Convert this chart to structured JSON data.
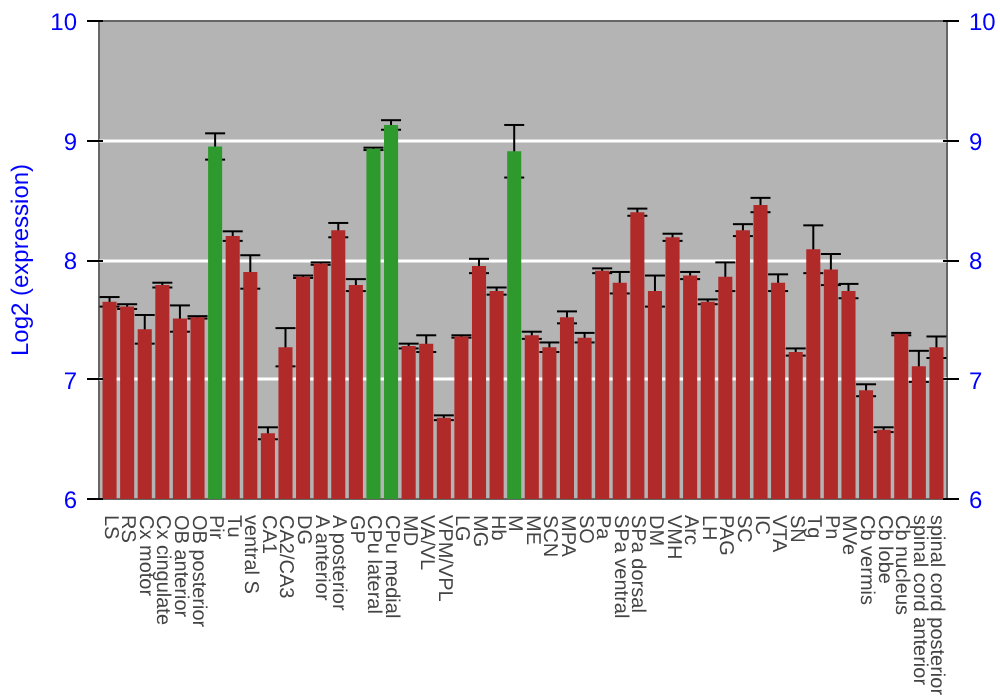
{
  "chart_data": {
    "type": "bar",
    "ylabel": "Log2 (expression)",
    "categories": [
      "LS",
      "RS",
      "Cx motor",
      "Cx cingulate",
      "OB anterior",
      "OB posterior",
      "Pir",
      "Tu",
      "ventral S",
      "CA1",
      "CA2/CA3",
      "DG",
      "A anterior",
      "A posterior",
      "GP",
      "CPu lateral",
      "CPu medial",
      "MD",
      "VA/VL",
      "VPM/VPL",
      "LG",
      "MG",
      "Hb",
      "M",
      "ME",
      "SCN",
      "MPA",
      "SO",
      "Pa",
      "SPa ventral",
      "SPa dorsal",
      "DM",
      "VMH",
      "Arc",
      "LH",
      "PAG",
      "SC",
      "IC",
      "VTA",
      "SN",
      "Tg",
      "Pn",
      "MVe",
      "Cb vermis",
      "Cb lobe",
      "Cb nucleus",
      "spinal cord anterior",
      "spinal cord posterior"
    ],
    "values": [
      7.65,
      7.61,
      7.42,
      7.79,
      7.51,
      7.52,
      8.95,
      8.2,
      7.9,
      6.55,
      7.27,
      7.86,
      7.97,
      8.25,
      7.79,
      8.93,
      9.13,
      7.28,
      7.3,
      6.68,
      7.36,
      7.95,
      7.74,
      8.91,
      7.37,
      7.27,
      7.52,
      7.35,
      7.91,
      7.81,
      8.4,
      7.74,
      8.19,
      7.87,
      7.65,
      7.86,
      8.25,
      8.46,
      7.81,
      7.23,
      8.09,
      7.92,
      7.74,
      6.91,
      6.58,
      7.38,
      7.11,
      7.27
    ],
    "errors": [
      0.04,
      0.02,
      0.12,
      0.02,
      0.11,
      0.01,
      0.11,
      0.04,
      0.14,
      0.05,
      0.16,
      0.01,
      0.01,
      0.06,
      0.05,
      0.01,
      0.04,
      0.02,
      0.07,
      0.02,
      0.01,
      0.06,
      0.03,
      0.22,
      0.03,
      0.04,
      0.05,
      0.04,
      0.02,
      0.09,
      0.03,
      0.13,
      0.03,
      0.03,
      0.02,
      0.12,
      0.05,
      0.06,
      0.07,
      0.03,
      0.2,
      0.13,
      0.06,
      0.05,
      0.02,
      0.01,
      0.13,
      0.09
    ],
    "colors": [
      "#b02a2a",
      "#b02a2a",
      "#b02a2a",
      "#b02a2a",
      "#b02a2a",
      "#b02a2a",
      "#2e9a2e",
      "#b02a2a",
      "#b02a2a",
      "#b02a2a",
      "#b02a2a",
      "#b02a2a",
      "#b02a2a",
      "#b02a2a",
      "#b02a2a",
      "#2e9a2e",
      "#2e9a2e",
      "#b02a2a",
      "#b02a2a",
      "#b02a2a",
      "#b02a2a",
      "#b02a2a",
      "#b02a2a",
      "#2e9a2e",
      "#b02a2a",
      "#b02a2a",
      "#b02a2a",
      "#b02a2a",
      "#b02a2a",
      "#b02a2a",
      "#b02a2a",
      "#b02a2a",
      "#b02a2a",
      "#b02a2a",
      "#b02a2a",
      "#b02a2a",
      "#b02a2a",
      "#b02a2a",
      "#b02a2a",
      "#b02a2a",
      "#b02a2a",
      "#b02a2a",
      "#b02a2a",
      "#b02a2a",
      "#b02a2a",
      "#b02a2a",
      "#b02a2a",
      "#b02a2a"
    ],
    "ylim": [
      6,
      10
    ],
    "yticks": [
      6,
      7,
      8,
      9,
      10
    ],
    "y2lim": [
      6,
      10
    ],
    "y2ticks": [
      6,
      7,
      8,
      9,
      10
    ],
    "grid": "y"
  }
}
